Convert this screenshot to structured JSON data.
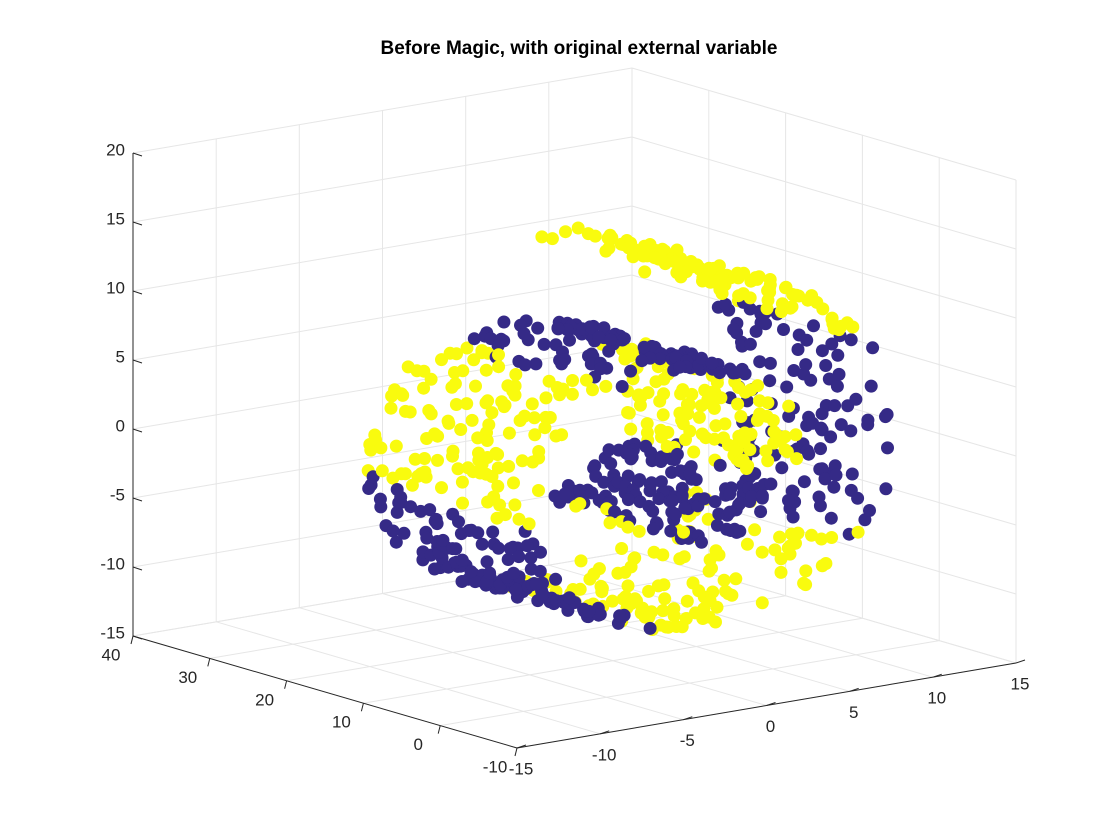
{
  "figure": {
    "title": "Before Magic, with original external variable"
  },
  "chart_data": {
    "type": "scatter",
    "title": "Before Magic, with original external variable",
    "xlabel": "",
    "ylabel": "",
    "zlabel": "",
    "x_axis": {
      "ticks": [
        -15,
        -10,
        -5,
        0,
        5,
        10,
        15
      ],
      "tick_labels": [
        "-15",
        "-10",
        "-5",
        "0",
        "5",
        "10",
        "15"
      ],
      "range": [
        -15,
        15
      ]
    },
    "y_axis": {
      "ticks": [
        -10,
        0,
        10,
        20,
        30,
        40
      ],
      "tick_labels": [
        "-10",
        "0",
        "10",
        "20",
        "30",
        "40"
      ],
      "range": [
        -10,
        40
      ]
    },
    "z_axis": {
      "ticks": [
        -15,
        -10,
        -5,
        0,
        5,
        10,
        15,
        20
      ],
      "tick_labels": [
        "-15",
        "-10",
        "-5",
        "0",
        "5",
        "10",
        "15",
        "20"
      ],
      "range": [
        -15,
        20
      ]
    },
    "grid": true,
    "colors": {
      "class_0": "#352a87",
      "class_1": "#f9fb0e"
    },
    "data_generation": {
      "shape": "swiss_roll",
      "n_points": 1000,
      "t_range": [
        4.7,
        14.2
      ],
      "height_range": [
        0,
        22
      ],
      "classes": 2,
      "class_rule": "alternating bands along roll parameter t, band width 1.2"
    }
  }
}
